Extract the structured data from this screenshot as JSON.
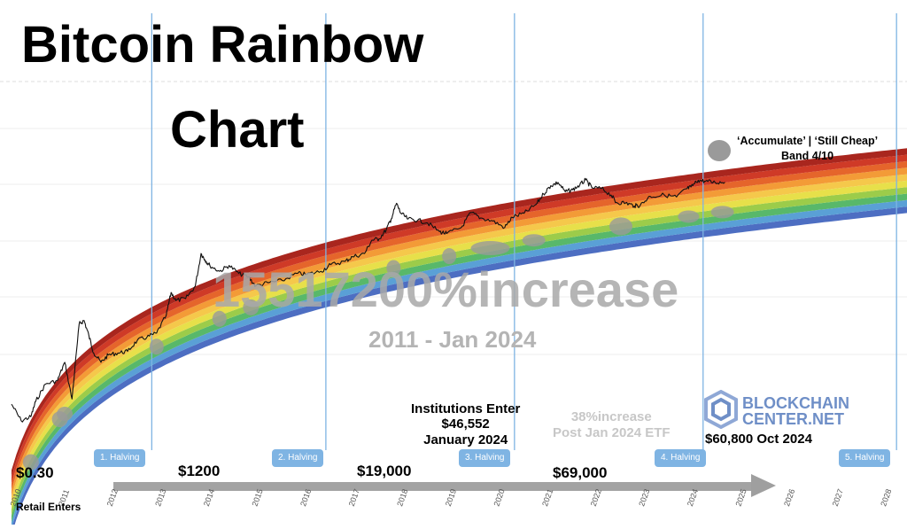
{
  "title_line1": "Bitcoin Rainbow",
  "title_line2": "Chart",
  "watermark_increase": "15517200%increase",
  "watermark_range": "2011 - Jan 2024",
  "legend": {
    "label_line1": "‘Accumulate’ | ‘Still Cheap’",
    "label_line2": "Band 4/10",
    "dot_color": "#9a9a9a"
  },
  "annotations": {
    "institutions_line1": "Institutions Enter",
    "institutions_line2": "$46,552",
    "institutions_line3": "January 2024",
    "etf_line1": "38%increase",
    "etf_line2": "Post Jan 2024 ETF",
    "oct2024": "$60,800 Oct 2024",
    "retail": "Retail Enters"
  },
  "price_labels": [
    "$0.30",
    "$1200",
    "$19,000",
    "$69,000"
  ],
  "halvings": [
    "1. Halving",
    "2. Halving",
    "3. Halving",
    "4. Halving",
    "5. Halving"
  ],
  "logo": {
    "line1": "BLOCKCHAIN",
    "line2": "CENTER.NET",
    "icon": "blockchain-center-logo-icon"
  },
  "chart_data": {
    "type": "line",
    "title": "Bitcoin Rainbow Chart",
    "x_ticks": [
      "2010",
      "2011",
      "2012",
      "2013",
      "2014",
      "2015",
      "2016",
      "2017",
      "2018",
      "2019",
      "2020",
      "2021",
      "2022",
      "2023",
      "2024",
      "2025",
      "2026",
      "2027",
      "2028"
    ],
    "y_scale": "log",
    "grid": true,
    "rainbow_band_colors": [
      "#4d6ec2",
      "#5aa0d6",
      "#58b86a",
      "#9ccc4a",
      "#e7e04a",
      "#f5c84b",
      "#f39b37",
      "#e5652b",
      "#cf3a27",
      "#a9261e"
    ],
    "halving_years": [
      2012.9,
      2016.5,
      2020.4,
      2024.3,
      2028.3
    ],
    "series": [
      {
        "values": [
          [
            2010.0,
            0.3
          ],
          [
            2010.2,
            0.12
          ],
          [
            2010.4,
            0.15
          ],
          [
            2010.5,
            0.35
          ],
          [
            2010.7,
            0.9
          ],
          [
            2010.95,
            1.1
          ],
          [
            2011.1,
            3
          ],
          [
            2011.25,
            0.4
          ],
          [
            2011.4,
            25
          ],
          [
            2011.5,
            30
          ],
          [
            2011.6,
            13
          ],
          [
            2011.7,
            5
          ],
          [
            2011.85,
            3
          ],
          [
            2012.0,
            4.5
          ],
          [
            2012.2,
            5
          ],
          [
            2012.4,
            5.5
          ],
          [
            2012.6,
            10
          ],
          [
            2012.8,
            12
          ],
          [
            2013.0,
            15
          ],
          [
            2013.2,
            40
          ],
          [
            2013.3,
            140
          ],
          [
            2013.4,
            90
          ],
          [
            2013.6,
            100
          ],
          [
            2013.8,
            200
          ],
          [
            2013.92,
            1200
          ],
          [
            2014.0,
            850
          ],
          [
            2014.1,
            620
          ],
          [
            2014.3,
            450
          ],
          [
            2014.5,
            620
          ],
          [
            2014.7,
            400
          ],
          [
            2014.9,
            330
          ],
          [
            2015.05,
            200
          ],
          [
            2015.3,
            240
          ],
          [
            2015.6,
            270
          ],
          [
            2015.9,
            400
          ],
          [
            2016.1,
            380
          ],
          [
            2016.4,
            450
          ],
          [
            2016.6,
            650
          ],
          [
            2016.9,
            780
          ],
          [
            2017.05,
            1000
          ],
          [
            2017.3,
            1200
          ],
          [
            2017.45,
            2500
          ],
          [
            2017.6,
            2700
          ],
          [
            2017.75,
            4500
          ],
          [
            2017.85,
            8000
          ],
          [
            2017.96,
            19000
          ],
          [
            2018.05,
            11000
          ],
          [
            2018.2,
            8000
          ],
          [
            2018.4,
            7500
          ],
          [
            2018.6,
            6500
          ],
          [
            2018.85,
            4000
          ],
          [
            2019.0,
            3600
          ],
          [
            2019.3,
            5000
          ],
          [
            2019.5,
            11500
          ],
          [
            2019.7,
            8500
          ],
          [
            2019.95,
            7200
          ],
          [
            2020.2,
            5000
          ],
          [
            2020.35,
            8800
          ],
          [
            2020.6,
            11000
          ],
          [
            2020.85,
            18000
          ],
          [
            2021.0,
            32000
          ],
          [
            2021.15,
            50000
          ],
          [
            2021.3,
            60000
          ],
          [
            2021.45,
            36000
          ],
          [
            2021.6,
            40000
          ],
          [
            2021.75,
            52000
          ],
          [
            2021.87,
            69000
          ],
          [
            2022.0,
            45000
          ],
          [
            2022.2,
            43000
          ],
          [
            2022.4,
            30000
          ],
          [
            2022.5,
            20000
          ],
          [
            2022.7,
            19500
          ],
          [
            2022.88,
            16500
          ],
          [
            2023.0,
            17000
          ],
          [
            2023.2,
            28000
          ],
          [
            2023.5,
            30000
          ],
          [
            2023.75,
            27000
          ],
          [
            2023.95,
            42000
          ],
          [
            2024.05,
            46552
          ],
          [
            2024.2,
            68000
          ],
          [
            2024.35,
            64000
          ],
          [
            2024.55,
            60000
          ],
          [
            2024.75,
            60800
          ]
        ]
      }
    ]
  }
}
